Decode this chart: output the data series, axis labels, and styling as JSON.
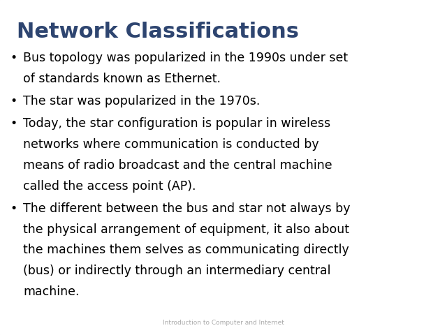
{
  "title": "Network Classifications",
  "title_color": "#2E4570",
  "title_fontsize": 22,
  "bullets": [
    [
      "Bus topology was popularized in the 1990s under set",
      "of standards known as Ethernet."
    ],
    [
      "The star was popularized in the 1970s."
    ],
    [
      "Today, the star configuration is popular in wireless",
      "networks where communication is conducted by",
      "means of radio broadcast and the central machine",
      "called the access point (AP)."
    ],
    [
      "The different between the bus and star not always by",
      "the physical arrangement of equipment, it also about",
      "the machines them selves as communicating directly",
      "(bus) or indirectly through an intermediary central",
      "machine."
    ]
  ],
  "bullet_fontsize": 12.5,
  "bullet_color": "#000000",
  "bullet_symbol": "•",
  "footer": "Introduction to Computer and Internet",
  "footer_fontsize": 6.5,
  "footer_color": "#aaaaaa",
  "background_color": "#ffffff",
  "border_color": "#cccccc"
}
